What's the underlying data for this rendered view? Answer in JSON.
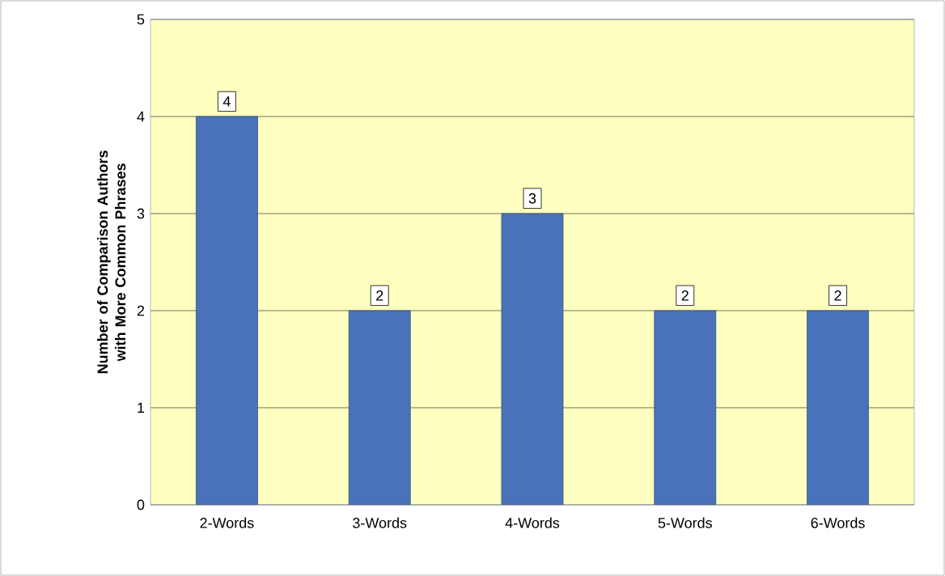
{
  "chart_data": {
    "type": "bar",
    "ylabel": "Number of Comparison Authors with More Common Phrases",
    "categories": [
      "2-Words",
      "3-Words",
      "4-Words",
      "5-Words",
      "6-Words"
    ],
    "values": [
      4,
      2,
      3,
      2,
      2
    ],
    "color": "#4a72b8",
    "ylim": [
      0,
      5
    ],
    "yticks": [
      0,
      1,
      2,
      3,
      4,
      5
    ],
    "grid": "y",
    "data_labels": true
  }
}
